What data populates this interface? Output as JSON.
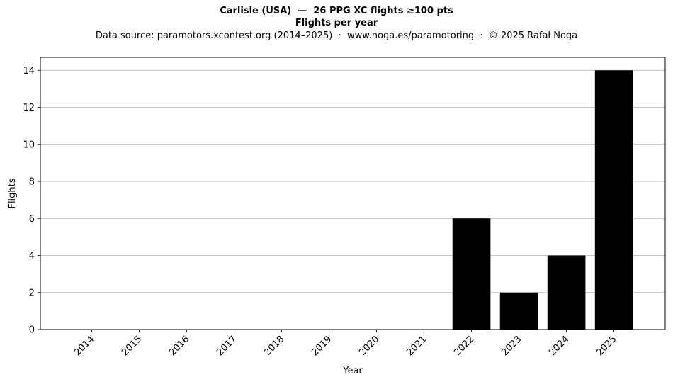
{
  "chart_data": {
    "type": "bar",
    "title": "Carlisle (USA)  —  26 PPG XC flights ≥100 pts",
    "subtitle": "Flights per year",
    "source_note": "Data source: paramotors.xcontest.org (2014–2025)  ·  www.noga.es/paramotoring  ·  © 2025 Rafał Noga",
    "xlabel": "Year",
    "ylabel": "Flights",
    "categories": [
      "2014",
      "2015",
      "2016",
      "2017",
      "2018",
      "2019",
      "2020",
      "2021",
      "2022",
      "2023",
      "2024",
      "2025"
    ],
    "values": [
      0,
      0,
      0,
      0,
      0,
      0,
      0,
      0,
      6,
      2,
      4,
      14
    ],
    "ylim": [
      0,
      14.7
    ],
    "yticks": [
      0,
      2,
      4,
      6,
      8,
      10,
      12,
      14
    ],
    "grid": "y",
    "bar_color": "#000000",
    "grid_color": "#b0b0b0"
  }
}
